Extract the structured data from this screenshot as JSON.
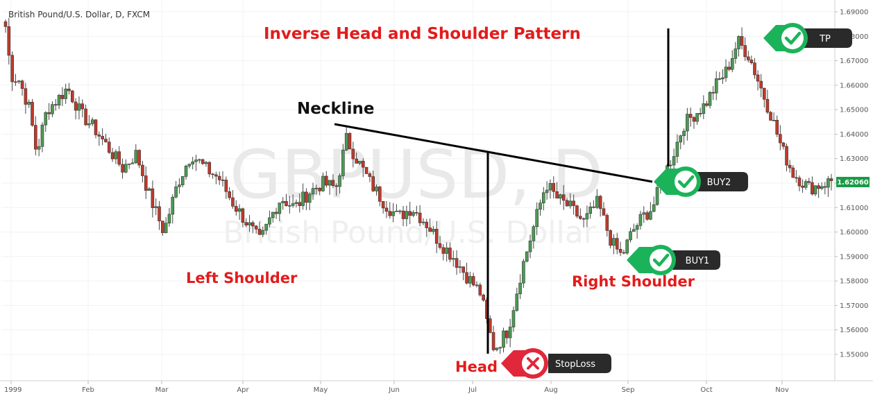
{
  "header": {
    "symbol": "British Pound/U.S. Dollar, D, FXCM"
  },
  "watermark": {
    "ticker": "GBPUSD, D",
    "name": "British Pound/U.S. Dollar"
  },
  "annotations": {
    "title": "Inverse Head and Shoulder Pattern",
    "neckline": "Neckline",
    "left_shoulder": "Left Shoulder",
    "head": "Head",
    "right_shoulder": "Right Shoulder"
  },
  "badges": {
    "tp": "TP",
    "buy2": "BUY2",
    "buy1": "BUY1",
    "stoploss": "StopLoss"
  },
  "current_price": "1.62060",
  "colors": {
    "up": "#4c9b53",
    "down": "#c0392b",
    "annotation_red": "#e31b1b",
    "badge_green": "#1bb35a",
    "badge_red": "#e0283a",
    "badge_dark": "#2a2a2a",
    "price_tag": "#1b9a48"
  },
  "chart_data": {
    "type": "candlestick",
    "timeframe": "D",
    "x_tick_labels": [
      "1999",
      "Feb",
      "Mar",
      "Apr",
      "May",
      "Jun",
      "Jul",
      "Aug",
      "Sep",
      "Oct",
      "Nov"
    ],
    "y_tick_labels": [
      "1.69000",
      "1.68000",
      "1.67000",
      "1.66000",
      "1.65000",
      "1.64000",
      "1.63000",
      "1.62000",
      "1.61000",
      "1.60000",
      "1.59000",
      "1.58000",
      "1.57000",
      "1.56000",
      "1.55000"
    ],
    "ylim": [
      1.54,
      1.693
    ],
    "close_path": [
      [
        0,
        1.684
      ],
      [
        0.008,
        1.664
      ],
      [
        0.02,
        1.662
      ],
      [
        0.035,
        1.65
      ],
      [
        0.045,
        1.632
      ],
      [
        0.06,
        1.65
      ],
      [
        0.075,
        1.654
      ],
      [
        0.09,
        1.659
      ],
      [
        0.11,
        1.648
      ],
      [
        0.13,
        1.642
      ],
      [
        0.15,
        1.634
      ],
      [
        0.17,
        1.626
      ],
      [
        0.19,
        1.632
      ],
      [
        0.21,
        1.614
      ],
      [
        0.23,
        1.6
      ],
      [
        0.25,
        1.62
      ],
      [
        0.27,
        1.632
      ],
      [
        0.29,
        1.626
      ],
      [
        0.31,
        1.622
      ],
      [
        0.33,
        1.612
      ],
      [
        0.35,
        1.604
      ],
      [
        0.37,
        1.596
      ],
      [
        0.385,
        1.606
      ],
      [
        0.4,
        1.614
      ],
      [
        0.42,
        1.61
      ],
      [
        0.44,
        1.616
      ],
      [
        0.46,
        1.62
      ],
      [
        0.48,
        1.618
      ],
      [
        0.495,
        1.638
      ],
      [
        0.51,
        1.63
      ],
      [
        0.53,
        1.62
      ],
      [
        0.55,
        1.612
      ],
      [
        0.57,
        1.606
      ],
      [
        0.59,
        1.61
      ],
      [
        0.61,
        1.604
      ],
      [
        0.63,
        1.596
      ],
      [
        0.65,
        1.59
      ],
      [
        0.67,
        1.582
      ],
      [
        0.69,
        1.575
      ],
      [
        0.7,
        1.562
      ],
      [
        0.71,
        1.552
      ],
      [
        0.73,
        1.56
      ],
      [
        0.75,
        1.585
      ],
      [
        0.77,
        1.605
      ],
      [
        0.785,
        1.62
      ],
      [
        0.8,
        1.614
      ],
      [
        0.82,
        1.61
      ],
      [
        0.84,
        1.604
      ],
      [
        0.86,
        1.612
      ],
      [
        0.88,
        1.596
      ],
      [
        0.895,
        1.59
      ],
      [
        0.91,
        1.6
      ],
      [
        0.925,
        1.606
      ],
      [
        0.94,
        1.61
      ],
      [
        0.955,
        1.622
      ],
      [
        0.97,
        1.632
      ],
      [
        0.985,
        1.644
      ],
      [
        1,
        1.648
      ]
    ],
    "close_path_2": [
      [
        0,
        1.648
      ],
      [
        0.04,
        1.652
      ],
      [
        0.08,
        1.66
      ],
      [
        0.12,
        1.666
      ],
      [
        0.16,
        1.678
      ],
      [
        0.2,
        1.672
      ],
      [
        0.24,
        1.66
      ],
      [
        0.28,
        1.648
      ],
      [
        0.32,
        1.634
      ],
      [
        0.36,
        1.624
      ],
      [
        0.42,
        1.618
      ],
      [
        0.48,
        1.62
      ],
      [
        0.5,
        1.621
      ]
    ],
    "levels": {
      "tp": 1.681,
      "buy2": 1.622,
      "buy1": 1.59,
      "stoploss": 1.5515
    }
  }
}
